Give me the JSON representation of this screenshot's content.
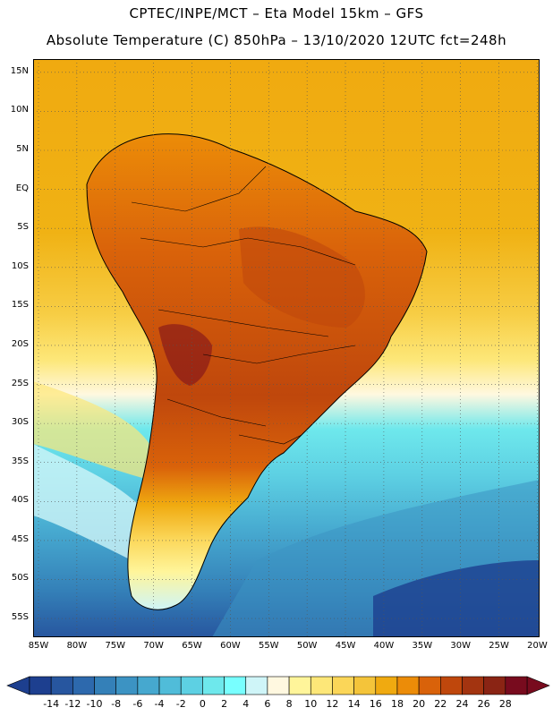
{
  "title": {
    "line1": "CPTEC/INPE/MCT –  Eta Model 15km – GFS",
    "line2": "Absolute Temperature (C) 850hPa – 13/10/2020 12UTC fct=248h"
  },
  "map": {
    "lat_labels": [
      "15N",
      "10N",
      "5N",
      "EQ",
      "5S",
      "10S",
      "15S",
      "20S",
      "25S",
      "30S",
      "35S",
      "40S",
      "45S",
      "50S",
      "55S"
    ],
    "lat_values": [
      15,
      10,
      5,
      0,
      -5,
      -10,
      -15,
      -20,
      -25,
      -30,
      -35,
      -40,
      -45,
      -50,
      -55
    ],
    "lon_labels": [
      "85W",
      "80W",
      "75W",
      "70W",
      "65W",
      "60W",
      "55W",
      "50W",
      "45W",
      "40W",
      "35W",
      "30W",
      "25W",
      "20W"
    ],
    "lon_values": [
      -85,
      -80,
      -75,
      -70,
      -65,
      -60,
      -55,
      -50,
      -45,
      -40,
      -35,
      -30,
      -25,
      -20
    ],
    "lon_range": [
      -85.7,
      -19.7
    ],
    "lat_range": [
      -57.4,
      16.7
    ]
  },
  "colorbar": {
    "labels": [
      "-14",
      "-12",
      "-10",
      "-8",
      "-6",
      "-4",
      "-2",
      "0",
      "2",
      "4",
      "6",
      "8",
      "10",
      "12",
      "14",
      "16",
      "18",
      "20",
      "22",
      "24",
      "26",
      "28"
    ],
    "colors": [
      "#1d3f8f",
      "#27569f",
      "#2d69ad",
      "#3480b8",
      "#3c93c3",
      "#46a8cf",
      "#50bcd9",
      "#5dd0e3",
      "#6ee8ec",
      "#78ffff",
      "#cff5f8",
      "#fff8e0",
      "#fff59a",
      "#fde778",
      "#fbd658",
      "#f4c43a",
      "#f0aa10",
      "#ec8c08",
      "#d9620a",
      "#bf470c",
      "#a33410",
      "#8a2414",
      "#780b1e"
    ]
  }
}
